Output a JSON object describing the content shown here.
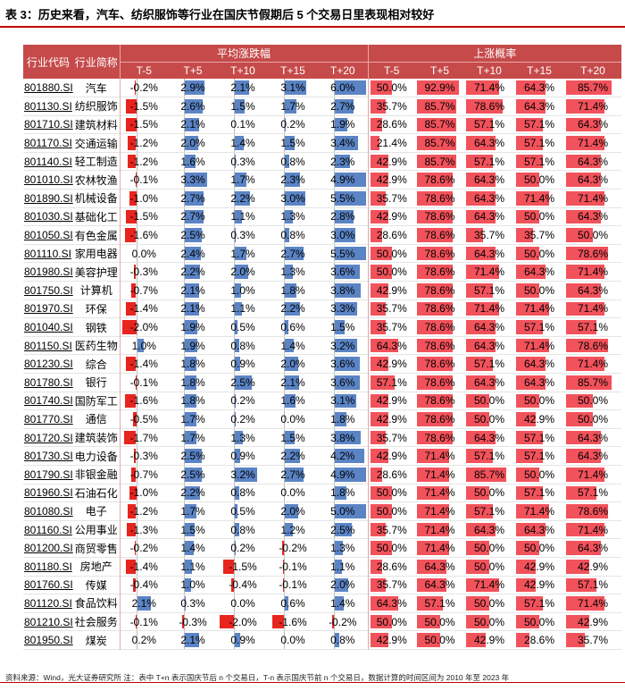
{
  "title": "表 3：历史来看，汽车、纺织服饰等行业在国庆节假期后 5 个交易日里表现相对较好",
  "header": {
    "code": "行业代码",
    "name": "行业简称",
    "group_return": "平均涨跌幅",
    "group_prob": "上涨概率",
    "periods": [
      "T-5",
      "T+5",
      "T+10",
      "T+15",
      "T+20"
    ]
  },
  "colors": {
    "header_bg": "#c64a4a",
    "positive_bar": "#5b84c5",
    "negative_bar": "#e8241f",
    "prob_bar": "#f2525b"
  },
  "rows": [
    {
      "code": "801880.SI",
      "name": "汽车",
      "ret": [
        "-0.2%",
        "2.9%",
        "2.1%",
        "3.1%",
        "6.0%"
      ],
      "prob": [
        "50.0%",
        "92.9%",
        "71.4%",
        "64.3%",
        "85.7%"
      ]
    },
    {
      "code": "801130.SI",
      "name": "纺织服饰",
      "ret": [
        "-1.5%",
        "2.6%",
        "1.5%",
        "1.7%",
        "2.7%"
      ],
      "prob": [
        "35.7%",
        "85.7%",
        "78.6%",
        "64.3%",
        "71.4%"
      ]
    },
    {
      "code": "801710.SI",
      "name": "建筑材料",
      "ret": [
        "-1.5%",
        "2.1%",
        "0.1%",
        "0.2%",
        "1.9%"
      ],
      "prob": [
        "28.6%",
        "85.7%",
        "57.1%",
        "57.1%",
        "64.3%"
      ]
    },
    {
      "code": "801170.SI",
      "name": "交通运输",
      "ret": [
        "-1.2%",
        "2.0%",
        "1.4%",
        "1.5%",
        "3.4%"
      ],
      "prob": [
        "21.4%",
        "85.7%",
        "64.3%",
        "57.1%",
        "71.4%"
      ]
    },
    {
      "code": "801140.SI",
      "name": "轻工制造",
      "ret": [
        "-1.2%",
        "1.6%",
        "0.3%",
        "0.8%",
        "2.3%"
      ],
      "prob": [
        "42.9%",
        "85.7%",
        "57.1%",
        "57.1%",
        "64.3%"
      ]
    },
    {
      "code": "801010.SI",
      "name": "农林牧渔",
      "ret": [
        "-0.1%",
        "3.3%",
        "1.7%",
        "2.3%",
        "4.9%"
      ],
      "prob": [
        "42.9%",
        "78.6%",
        "64.3%",
        "50.0%",
        "64.3%"
      ]
    },
    {
      "code": "801890.SI",
      "name": "机械设备",
      "ret": [
        "-1.0%",
        "2.7%",
        "2.2%",
        "3.0%",
        "5.5%"
      ],
      "prob": [
        "35.7%",
        "78.6%",
        "64.3%",
        "71.4%",
        "71.4%"
      ]
    },
    {
      "code": "801030.SI",
      "name": "基础化工",
      "ret": [
        "-1.5%",
        "2.7%",
        "1.1%",
        "1.3%",
        "2.8%"
      ],
      "prob": [
        "42.9%",
        "78.6%",
        "64.3%",
        "50.0%",
        "64.3%"
      ]
    },
    {
      "code": "801050.SI",
      "name": "有色金属",
      "ret": [
        "-1.6%",
        "2.5%",
        "0.3%",
        "0.8%",
        "3.0%"
      ],
      "prob": [
        "28.6%",
        "78.6%",
        "35.7%",
        "35.7%",
        "50.0%"
      ]
    },
    {
      "code": "801110.SI",
      "name": "家用电器",
      "ret": [
        "0.0%",
        "2.4%",
        "1.7%",
        "2.7%",
        "5.5%"
      ],
      "prob": [
        "50.0%",
        "78.6%",
        "64.3%",
        "50.0%",
        "78.6%"
      ]
    },
    {
      "code": "801980.SI",
      "name": "美容护理",
      "ret": [
        "-0.3%",
        "2.2%",
        "2.0%",
        "1.3%",
        "3.6%"
      ],
      "prob": [
        "50.0%",
        "78.6%",
        "71.4%",
        "64.3%",
        "71.4%"
      ]
    },
    {
      "code": "801750.SI",
      "name": "计算机",
      "ret": [
        "-0.7%",
        "2.1%",
        "1.0%",
        "1.8%",
        "3.8%"
      ],
      "prob": [
        "42.9%",
        "78.6%",
        "57.1%",
        "50.0%",
        "64.3%"
      ]
    },
    {
      "code": "801970.SI",
      "name": "环保",
      "ret": [
        "-1.4%",
        "2.1%",
        "1.1%",
        "2.2%",
        "3.3%"
      ],
      "prob": [
        "35.7%",
        "78.6%",
        "71.4%",
        "71.4%",
        "71.4%"
      ]
    },
    {
      "code": "801040.SI",
      "name": "钢铁",
      "ret": [
        "-2.0%",
        "1.9%",
        "0.5%",
        "0.6%",
        "1.5%"
      ],
      "prob": [
        "35.7%",
        "78.6%",
        "64.3%",
        "57.1%",
        "57.1%"
      ]
    },
    {
      "code": "801150.SI",
      "name": "医药生物",
      "ret": [
        "1.0%",
        "1.9%",
        "0.8%",
        "1.4%",
        "3.2%"
      ],
      "prob": [
        "64.3%",
        "78.6%",
        "64.3%",
        "71.4%",
        "78.6%"
      ]
    },
    {
      "code": "801230.SI",
      "name": "综合",
      "ret": [
        "-1.4%",
        "1.8%",
        "0.9%",
        "2.0%",
        "3.6%"
      ],
      "prob": [
        "42.9%",
        "78.6%",
        "57.1%",
        "64.3%",
        "71.4%"
      ]
    },
    {
      "code": "801780.SI",
      "name": "银行",
      "ret": [
        "-0.1%",
        "1.8%",
        "2.5%",
        "2.1%",
        "3.6%"
      ],
      "prob": [
        "57.1%",
        "78.6%",
        "64.3%",
        "64.3%",
        "85.7%"
      ]
    },
    {
      "code": "801740.SI",
      "name": "国防军工",
      "ret": [
        "-1.6%",
        "1.8%",
        "0.2%",
        "1.6%",
        "3.1%"
      ],
      "prob": [
        "42.9%",
        "78.6%",
        "50.0%",
        "50.0%",
        "50.0%"
      ]
    },
    {
      "code": "801770.SI",
      "name": "通信",
      "ret": [
        "-0.5%",
        "1.7%",
        "0.2%",
        "0.0%",
        "1.8%"
      ],
      "prob": [
        "42.9%",
        "78.6%",
        "50.0%",
        "42.9%",
        "50.0%"
      ]
    },
    {
      "code": "801720.SI",
      "name": "建筑装饰",
      "ret": [
        "-1.7%",
        "1.7%",
        "1.3%",
        "1.5%",
        "3.8%"
      ],
      "prob": [
        "35.7%",
        "78.6%",
        "64.3%",
        "57.1%",
        "64.3%"
      ]
    },
    {
      "code": "801730.SI",
      "name": "电力设备",
      "ret": [
        "-0.3%",
        "2.5%",
        "0.9%",
        "2.2%",
        "4.2%"
      ],
      "prob": [
        "42.9%",
        "71.4%",
        "57.1%",
        "57.1%",
        "64.3%"
      ]
    },
    {
      "code": "801790.SI",
      "name": "非银金融",
      "ret": [
        "-0.7%",
        "2.5%",
        "3.2%",
        "2.7%",
        "4.9%"
      ],
      "prob": [
        "28.6%",
        "71.4%",
        "85.7%",
        "50.0%",
        "71.4%"
      ]
    },
    {
      "code": "801960.SI",
      "name": "石油石化",
      "ret": [
        "-1.0%",
        "2.2%",
        "0.8%",
        "0.0%",
        "1.8%"
      ],
      "prob": [
        "50.0%",
        "71.4%",
        "50.0%",
        "57.1%",
        "57.1%"
      ]
    },
    {
      "code": "801080.SI",
      "name": "电子",
      "ret": [
        "-1.2%",
        "1.7%",
        "0.5%",
        "2.0%",
        "5.0%"
      ],
      "prob": [
        "50.0%",
        "71.4%",
        "57.1%",
        "71.4%",
        "78.6%"
      ]
    },
    {
      "code": "801160.SI",
      "name": "公用事业",
      "ret": [
        "-1.3%",
        "1.5%",
        "0.8%",
        "1.2%",
        "2.5%"
      ],
      "prob": [
        "35.7%",
        "71.4%",
        "64.3%",
        "64.3%",
        "71.4%"
      ]
    },
    {
      "code": "801200.SI",
      "name": "商贸零售",
      "ret": [
        "-0.2%",
        "1.4%",
        "0.2%",
        "-0.2%",
        "1.3%"
      ],
      "prob": [
        "50.0%",
        "71.4%",
        "50.0%",
        "50.0%",
        "64.3%"
      ]
    },
    {
      "code": "801180.SI",
      "name": "房地产",
      "ret": [
        "-1.4%",
        "1.1%",
        "-1.5%",
        "-0.1%",
        "1.1%"
      ],
      "prob": [
        "28.6%",
        "64.3%",
        "50.0%",
        "42.9%",
        "42.9%"
      ]
    },
    {
      "code": "801760.SI",
      "name": "传媒",
      "ret": [
        "-0.4%",
        "1.0%",
        "-0.4%",
        "-0.1%",
        "2.0%"
      ],
      "prob": [
        "35.7%",
        "64.3%",
        "71.4%",
        "42.9%",
        "57.1%"
      ]
    },
    {
      "code": "801120.SI",
      "name": "食品饮料",
      "ret": [
        "2.1%",
        "0.3%",
        "0.0%",
        "0.6%",
        "1.4%"
      ],
      "prob": [
        "64.3%",
        "57.1%",
        "50.0%",
        "57.1%",
        "71.4%"
      ]
    },
    {
      "code": "801210.SI",
      "name": "社会服务",
      "ret": [
        "-0.1%",
        "-0.3%",
        "-2.0%",
        "-1.6%",
        "-0.2%"
      ],
      "prob": [
        "50.0%",
        "50.0%",
        "50.0%",
        "50.0%",
        "42.9%"
      ]
    },
    {
      "code": "801950.SI",
      "name": "煤炭",
      "ret": [
        "0.2%",
        "2.1%",
        "0.9%",
        "0.0%",
        "0.8%"
      ],
      "prob": [
        "42.9%",
        "50.0%",
        "42.9%",
        "28.6%",
        "35.7%"
      ]
    }
  ],
  "footer": "资料来源：Wind，光大证券研究所        注：表中 T+n 表示国庆节后 n 个交易日，T-n 表示国庆节前 n 个交易日，数据计算的时间区间为 2010 年至 2023 年"
}
